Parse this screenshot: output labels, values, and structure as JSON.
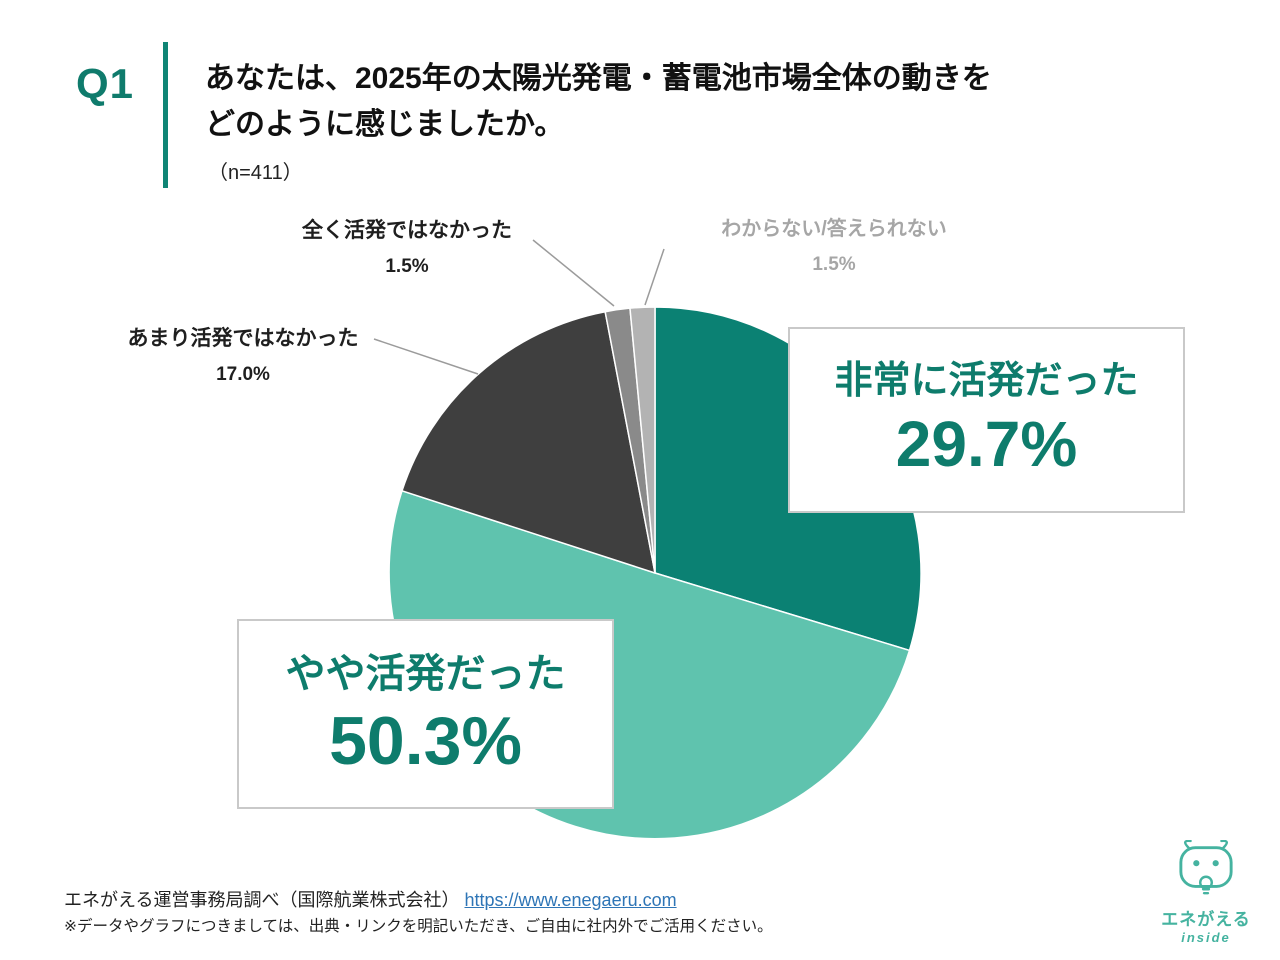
{
  "header": {
    "q_label": "Q1",
    "question_line1": "あなたは、2025年の太陽光発電・蓄電池市場全体の動きを",
    "question_line2": "どのように感じましたか。",
    "sample_size": "（n=411）"
  },
  "chart_data": {
    "type": "pie",
    "title": "あなたは、2025年の太陽光発電・蓄電池市場全体の動きをどのように感じましたか。",
    "sample_size_label": "（n=411）",
    "start_angle_deg": 0,
    "direction": "clockwise",
    "slices": [
      {
        "label": "非常に活発だった",
        "value": 29.7,
        "color": "#0B8173"
      },
      {
        "label": "やや活発だった",
        "value": 50.3,
        "color": "#5FC3AE"
      },
      {
        "label": "あまり活発ではなかった",
        "value": 17.0,
        "color": "#3F3F3F"
      },
      {
        "label": "全く活発ではなかった",
        "value": 1.5,
        "color": "#8A8A8A"
      },
      {
        "label": "わからない/答えられない",
        "value": 1.5,
        "color": "#B3B3B3"
      }
    ]
  },
  "callouts": {
    "very_active": {
      "label": "非常に活発だった",
      "value": "29.7%"
    },
    "somewhat_active": {
      "label": "やや活発だった",
      "value": "50.3%"
    },
    "not_very_active": {
      "label": "あまり活発ではなかった",
      "value": "17.0%"
    },
    "not_active_at_all": {
      "label": "全く活発ではなかった",
      "value": "1.5%"
    },
    "dont_know": {
      "label": "わからない/答えられない",
      "value": "1.5%"
    }
  },
  "footer": {
    "source_text": "エネがえる運営事務局調べ（国際航業株式会社）",
    "source_link": "https://www.enegaeru.com",
    "note": "※データやグラフにつきましては、出典・リンクを明記いただき、ご自由に社内外でご活用ください。"
  },
  "logo": {
    "name": "エネがえる",
    "sub": "inside"
  },
  "colors": {
    "accent_teal_dark": "#0B8173",
    "accent_teal_light": "#5FC3AE",
    "callout_text": "#0E7C6C",
    "muted_label": "#A6A6A6",
    "link": "#2E75B6",
    "logo_teal": "#45B3A0"
  }
}
